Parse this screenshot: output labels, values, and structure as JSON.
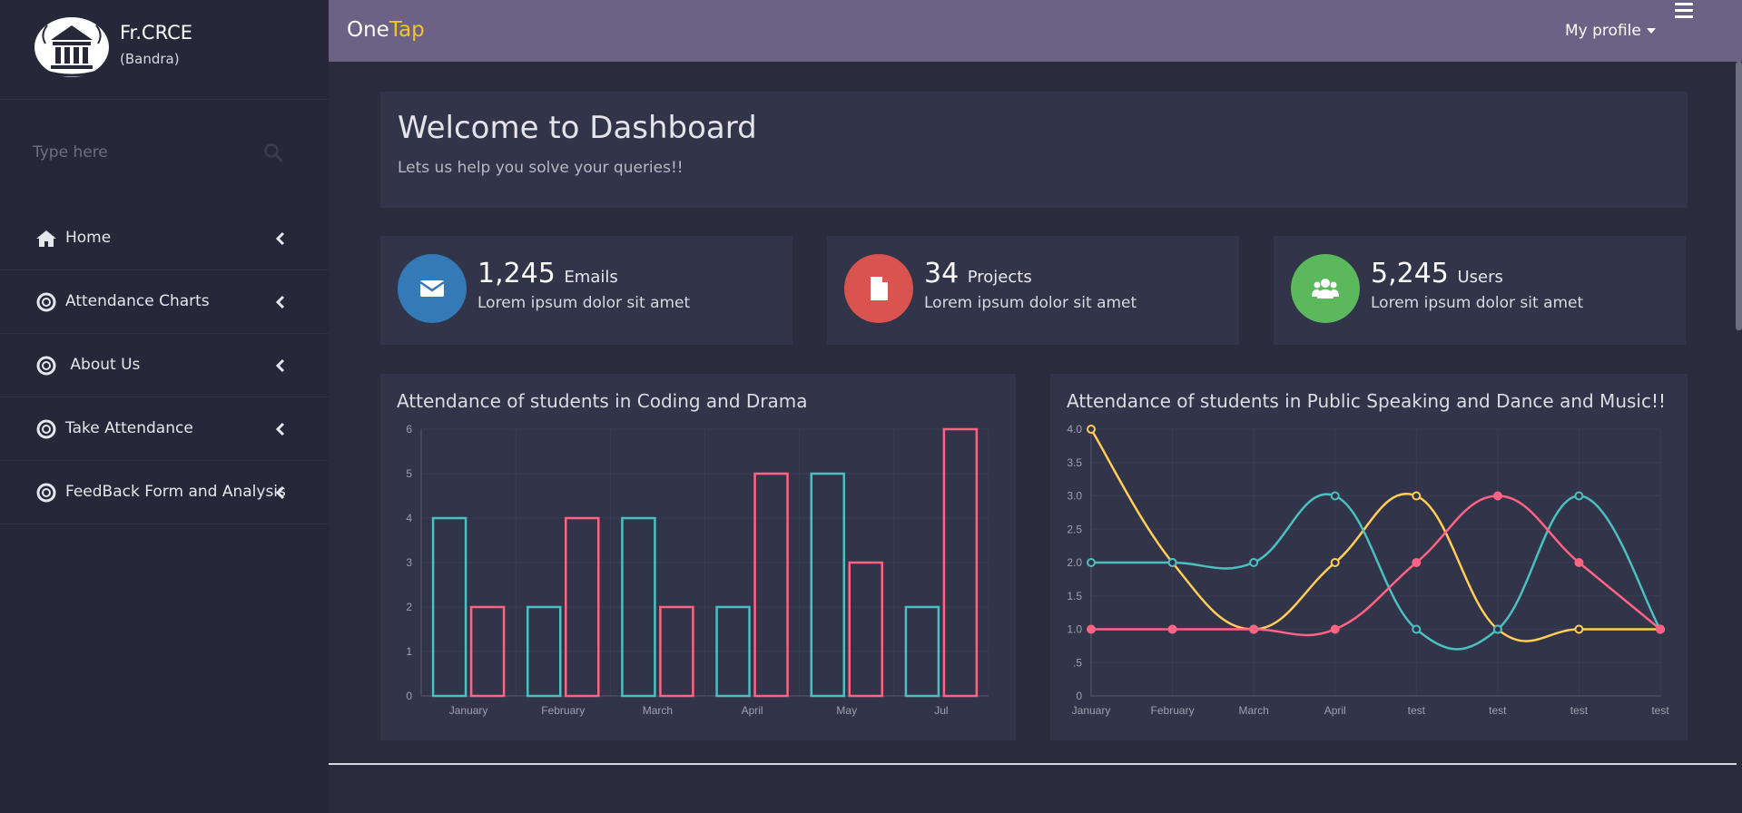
{
  "brand": {
    "name": "Fr.CRCE",
    "sub": "(Bandra)"
  },
  "search": {
    "placeholder": "Type here"
  },
  "nav": {
    "items": [
      {
        "label": "Home",
        "icon": "home-icon"
      },
      {
        "label": "Attendance Charts",
        "icon": "life-ring-icon"
      },
      {
        "label": " About Us",
        "icon": "life-ring-icon"
      },
      {
        "label": "Take Attendance",
        "icon": "life-ring-icon"
      },
      {
        "label": "FeedBack Form and Analysis",
        "icon": "life-ring-icon"
      }
    ]
  },
  "header": {
    "title_one": "One",
    "title_tap": "Tap",
    "profile_label": "My profile"
  },
  "welcome": {
    "title": "Welcome to Dashboard",
    "subtitle": "Lets us help you solve your queries!!"
  },
  "stats": [
    {
      "value": "1,245",
      "unit": "Emails",
      "desc": "Lorem ipsum dolor sit amet",
      "color": "#337ab7",
      "icon": "envelope-icon"
    },
    {
      "value": "34",
      "unit": "Projects",
      "desc": "Lorem ipsum dolor sit amet",
      "color": "#d9534f",
      "icon": "file-icon"
    },
    {
      "value": "5,245",
      "unit": "Users",
      "desc": "Lorem ipsum dolor sit amet",
      "color": "#5cb85c",
      "icon": "users-icon"
    }
  ],
  "charts": {
    "bar_title": "Attendance of students in Coding and Drama",
    "line_title": "Attendance of students in Public Speaking and Dance and Music!!"
  },
  "chart_data": [
    {
      "type": "bar",
      "title": "Attendance of students in Coding and Drama",
      "categories": [
        "January",
        "February",
        "March",
        "April",
        "May",
        "Jul"
      ],
      "series": [
        {
          "values": [
            4,
            2,
            4,
            2,
            5,
            2
          ],
          "color": "#4bc0c0"
        },
        {
          "values": [
            2,
            4,
            2,
            5,
            3,
            6
          ],
          "color": "#ff6384"
        }
      ],
      "yticks": [
        "0",
        "1",
        "2",
        "3",
        "4",
        "5",
        "6"
      ],
      "ylim": [
        0,
        6
      ],
      "grid": true
    },
    {
      "type": "line",
      "title": "Attendance of students in Public Speaking and Dance and Music!!",
      "categories": [
        "January",
        "February",
        "March",
        "April",
        "test",
        "test",
        "test",
        "test"
      ],
      "series": [
        {
          "values": [
            4.0,
            2.0,
            1.0,
            2.0,
            3.0,
            1.0,
            1.0,
            1.0
          ],
          "color": "#ffce56"
        },
        {
          "values": [
            2.0,
            2.0,
            2.0,
            3.0,
            1.0,
            1.0,
            3.0,
            1.0
          ],
          "color": "#4bc0c0"
        },
        {
          "values": [
            1.0,
            1.0,
            1.0,
            1.0,
            2.0,
            3.0,
            2.0,
            1.0
          ],
          "color": "#ff6384"
        }
      ],
      "yticks": [
        "0",
        ".5",
        "1.0",
        "1.5",
        "2.0",
        "2.5",
        "3.0",
        "3.5",
        "4.0"
      ],
      "ylim": [
        0,
        4
      ],
      "grid": true
    }
  ]
}
